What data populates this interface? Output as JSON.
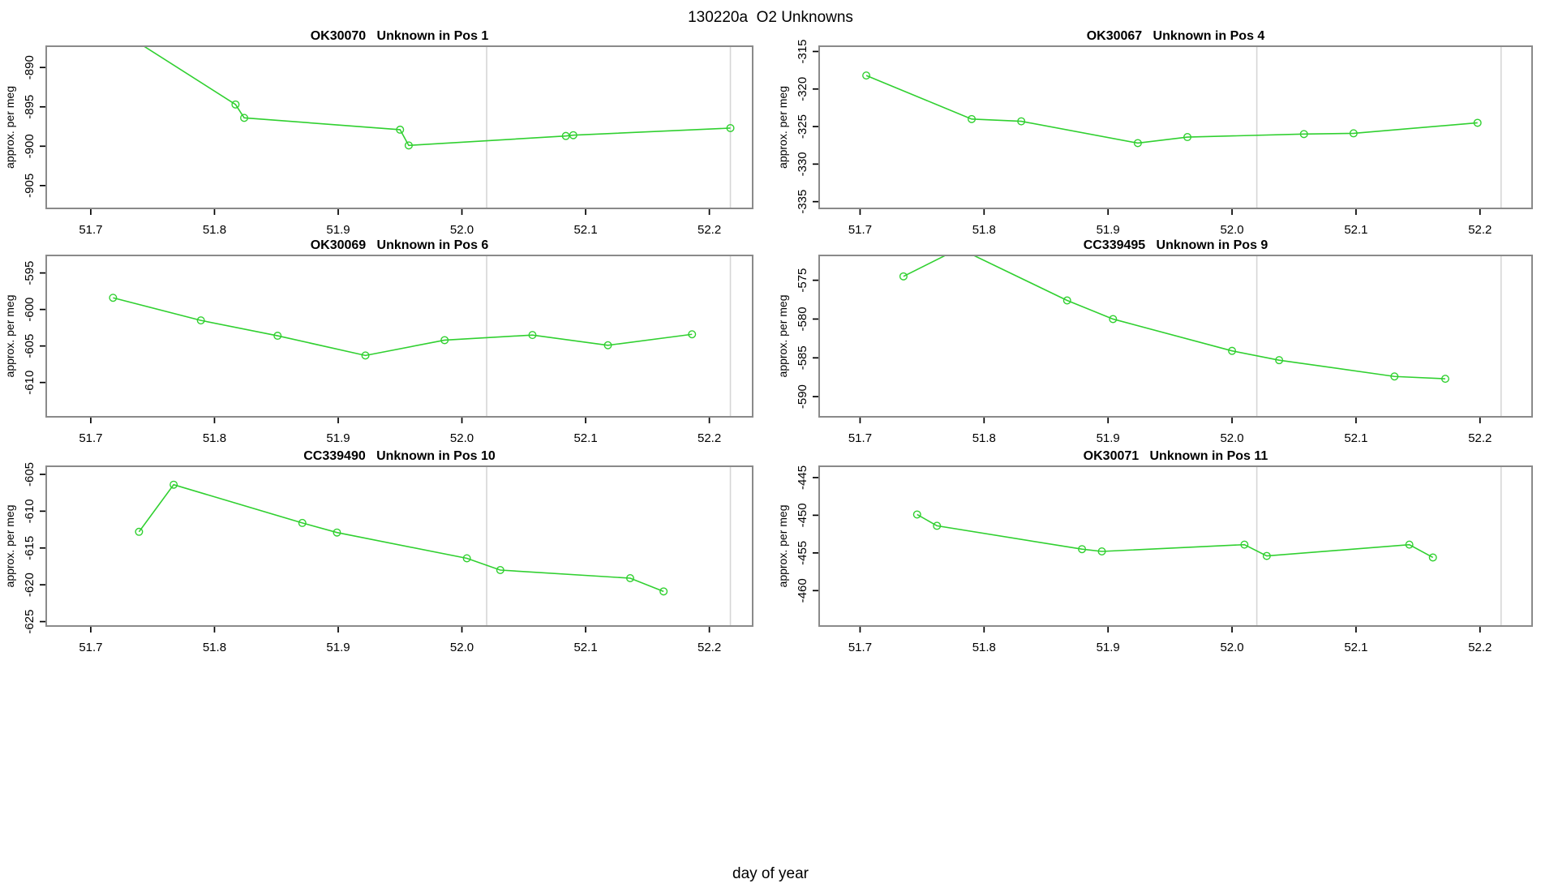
{
  "figure": {
    "title": "130220a  O2 Unknowns",
    "xlabel": "day of year",
    "background": "#ffffff",
    "colors": {
      "series": "#30d030",
      "box": "#8a8a8a",
      "tick": "#000000",
      "text": "#000000",
      "reference_line": "#d6d6d6"
    }
  },
  "axes": {
    "xticks": [
      51.7,
      51.8,
      51.9,
      52.0,
      52.1,
      52.2
    ],
    "xtick_labels": [
      "51.7",
      "51.8",
      "51.9",
      "52.0",
      "52.1",
      "52.2"
    ],
    "vlines": [
      52.02,
      52.217
    ]
  },
  "chart_data": [
    {
      "type": "line",
      "id": "ok30070-pos1",
      "title": "OK30070   Unknown in Pos 1",
      "ylabel": "approx. per meg",
      "x": [
        51.73,
        51.817,
        51.824,
        51.95,
        51.957,
        52.084,
        52.09,
        52.217
      ],
      "y": [
        -886.0,
        -894.7,
        -896.4,
        -897.9,
        -899.9,
        -898.7,
        -898.6,
        -897.7
      ],
      "yticks": [
        -905,
        -900,
        -895,
        -890
      ],
      "ylim": [
        -907.9,
        -887.3
      ],
      "xlim": [
        51.664,
        52.235
      ],
      "grid": "off",
      "legend": "none",
      "marker": "open-circle"
    },
    {
      "type": "line",
      "id": "ok30067-pos4",
      "title": "OK30067   Unknown in Pos 4",
      "ylabel": "approx. per meg",
      "x": [
        51.705,
        51.79,
        51.83,
        51.924,
        51.964,
        52.058,
        52.098,
        52.198
      ],
      "y": [
        -318.2,
        -324.0,
        -324.3,
        -327.2,
        -326.4,
        -326.0,
        -325.9,
        -324.5
      ],
      "yticks": [
        -335,
        -330,
        -325,
        -320,
        -315
      ],
      "ylim": [
        -335.9,
        -314.3
      ],
      "xlim": [
        51.667,
        52.242
      ],
      "grid": "off",
      "legend": "none",
      "marker": "open-circle"
    },
    {
      "type": "line",
      "id": "ok30069-pos6",
      "title": "OK30069   Unknown in Pos 6",
      "ylabel": "approx. per meg",
      "x": [
        51.718,
        51.789,
        51.851,
        51.922,
        51.986,
        52.057,
        52.118,
        52.186
      ],
      "y": [
        -598.4,
        -601.5,
        -603.6,
        -606.3,
        -604.2,
        -603.5,
        -604.9,
        -603.4
      ],
      "yticks": [
        -610,
        -605,
        -600,
        -595
      ],
      "ylim": [
        -614.7,
        -592.6
      ],
      "xlim": [
        51.664,
        52.235
      ],
      "grid": "off",
      "legend": "none",
      "marker": "open-circle"
    },
    {
      "type": "line",
      "id": "cc339495-pos9",
      "title": "CC339495   Unknown in Pos 9",
      "ylabel": "approx. per meg",
      "x": [
        51.735,
        51.78,
        51.867,
        51.904,
        52.0,
        52.038,
        52.131,
        52.172
      ],
      "y": [
        -574.5,
        -570.9,
        -577.6,
        -580.0,
        -584.1,
        -585.3,
        -587.4,
        -587.7
      ],
      "yticks": [
        -590,
        -585,
        -580,
        -575
      ],
      "ylim": [
        -592.6,
        -571.8
      ],
      "xlim": [
        51.667,
        52.242
      ],
      "grid": "off",
      "legend": "none",
      "marker": "open-circle"
    },
    {
      "type": "line",
      "id": "cc339490-pos10",
      "title": "CC339490   Unknown in Pos 10",
      "ylabel": "approx. per meg",
      "x": [
        51.739,
        51.767,
        51.871,
        51.899,
        52.004,
        52.031,
        52.136,
        52.163
      ],
      "y": [
        -612.8,
        -606.4,
        -611.6,
        -612.9,
        -616.4,
        -618.0,
        -619.1,
        -620.9
      ],
      "yticks": [
        -625,
        -620,
        -615,
        -610,
        -605
      ],
      "ylim": [
        -625.6,
        -603.9
      ],
      "xlim": [
        51.664,
        52.235
      ],
      "grid": "off",
      "legend": "none",
      "marker": "open-circle"
    },
    {
      "type": "line",
      "id": "ok30071-pos11",
      "title": "OK30071   Unknown in Pos 11",
      "ylabel": "approx. per meg",
      "x": [
        51.746,
        51.762,
        51.879,
        51.895,
        52.01,
        52.028,
        52.143,
        52.162
      ],
      "y": [
        -449.9,
        -451.4,
        -454.5,
        -454.8,
        -453.9,
        -455.4,
        -453.9,
        -455.6
      ],
      "yticks": [
        -460,
        -455,
        -450,
        -445
      ],
      "ylim": [
        -464.7,
        -443.5
      ],
      "xlim": [
        51.667,
        52.242
      ],
      "grid": "off",
      "legend": "none",
      "marker": "open-circle"
    }
  ]
}
